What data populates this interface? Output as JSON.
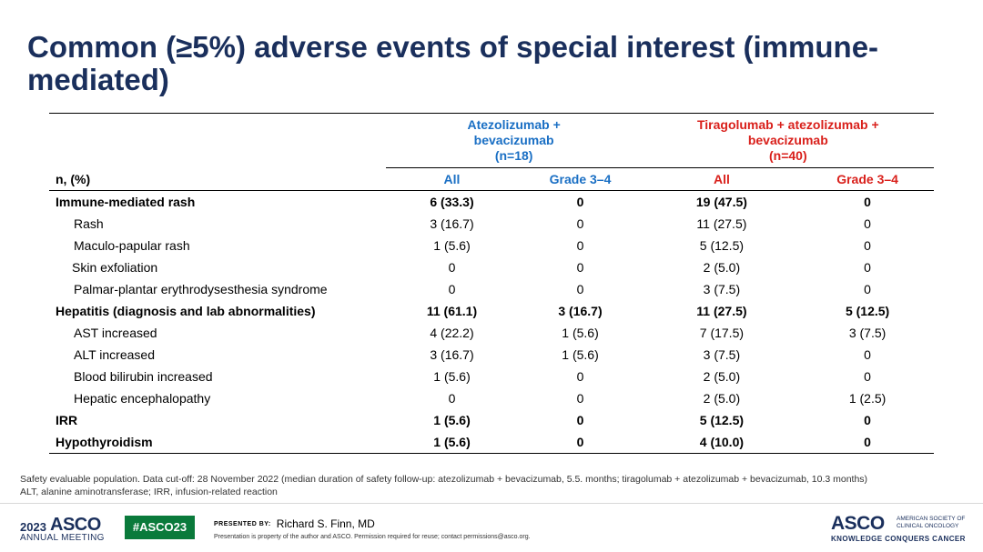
{
  "title": "Common (≥5%) adverse events of special interest (immune-mediated)",
  "table": {
    "group1": {
      "line1": "Atezolizumab +",
      "line2": "bevacizumab",
      "line3": "(n=18)"
    },
    "group2": {
      "line1": "Tiragolumab + atezolizumab +",
      "line2": "bevacizumab",
      "line3": "(n=40)"
    },
    "sub": {
      "label": "n, (%)",
      "all1": "All",
      "g1": "Grade 3–4",
      "all2": "All",
      "g2": "Grade 3–4"
    },
    "rows": [
      {
        "label": "Immune-mediated rash",
        "v": [
          "6 (33.3)",
          "0",
          "19 (47.5)",
          "0"
        ]
      },
      {
        "label": "Rash",
        "v": [
          "3 (16.7)",
          "0",
          "11 (27.5)",
          "0"
        ]
      },
      {
        "label": "Maculo-papular rash",
        "v": [
          "1 (5.6)",
          "0",
          "5 (12.5)",
          "0"
        ]
      },
      {
        "label": "Skin exfoliation",
        "v": [
          "0",
          "0",
          "2 (5.0)",
          "0"
        ]
      },
      {
        "label": "Palmar-plantar erythrodysesthesia  syndrome",
        "v": [
          "0",
          "0",
          "3 (7.5)",
          "0"
        ]
      },
      {
        "label": "Hepatitis (diagnosis and lab abnormalities)",
        "v": [
          "11 (61.1)",
          "3 (16.7)",
          "11 (27.5)",
          "5 (12.5)"
        ]
      },
      {
        "label": "AST increased",
        "v": [
          "4 (22.2)",
          "1 (5.6)",
          "7 (17.5)",
          "3 (7.5)"
        ]
      },
      {
        "label": "ALT increased",
        "v": [
          "3 (16.7)",
          "1 (5.6)",
          "3 (7.5)",
          "0"
        ]
      },
      {
        "label": "Blood bilirubin increased",
        "v": [
          "1 (5.6)",
          "0",
          "2 (5.0)",
          "0"
        ]
      },
      {
        "label": "Hepatic encephalopathy",
        "v": [
          "0",
          "0",
          "2 (5.0)",
          "1 (2.5)"
        ]
      },
      {
        "label": "IRR",
        "v": [
          "1 (5.6)",
          "0",
          "5 (12.5)",
          "0"
        ]
      },
      {
        "label": "Hypothyroidism",
        "v": [
          "1 (5.6)",
          "0",
          "4 (10.0)",
          "0"
        ]
      }
    ]
  },
  "footnote": {
    "line1": "Safety evaluable population. Data cut-off: 28 November  2022 (median duration of safety follow-up: atezolizumab  + bevacizumab,  5.5. months; tiragolumab + atezolizumab  + bevacizumab,  10.3 months)",
    "line2": "ALT, alanine  aminotransferase; IRR, infusion-related  reaction"
  },
  "footer": {
    "year": "2023",
    "asco": "ASCO",
    "annual_meeting": "ANNUAL MEETING",
    "hashtag": "#ASCO23",
    "presented_by": "PRESENTED BY:",
    "presenter": "Richard S. Finn, MD",
    "property": "Presentation is property of the author and ASCO. Permission required for reuse; contact permissions@asco.org.",
    "asco_right": "ASCO",
    "society": "AMERICAN SOCIETY OF CLINICAL ONCOLOGY",
    "kcc": "KNOWLEDGE CONQUERS CANCER"
  },
  "colors": {
    "title": "#1a2f5c",
    "blue": "#1a6fc4",
    "red": "#d9201b",
    "tag": "#0a7a3b"
  }
}
